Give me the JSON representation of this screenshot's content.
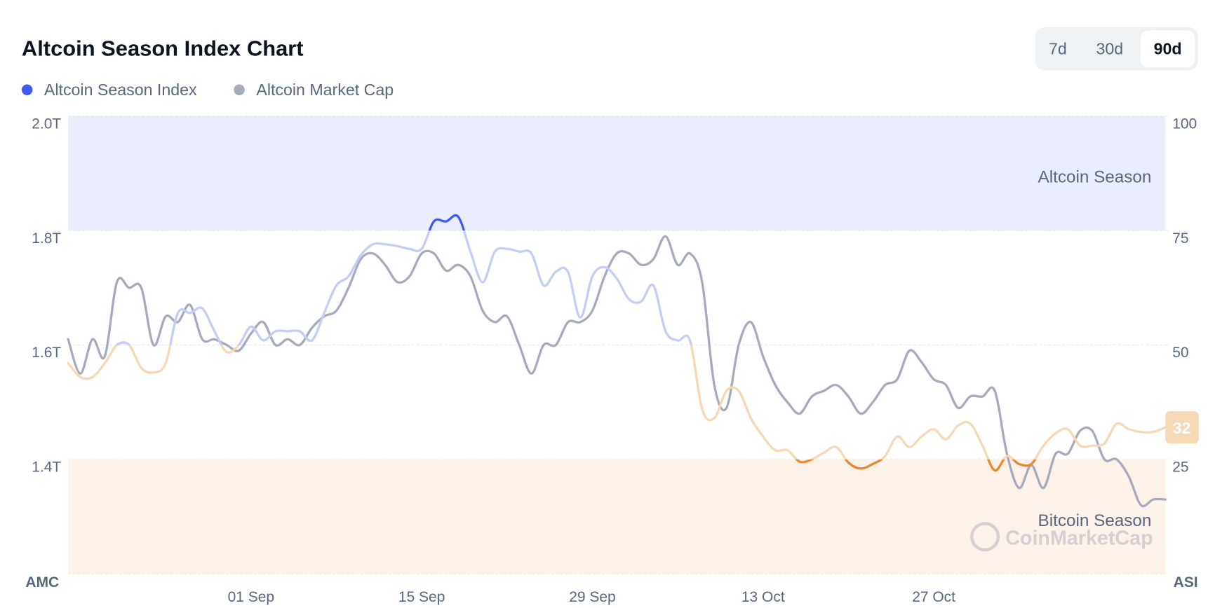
{
  "chart_data": {
    "type": "line",
    "title": "Altcoin Season Index Chart",
    "range_options": [
      "7d",
      "30d",
      "90d"
    ],
    "selected_range": 2,
    "y_label": "AMC",
    "y2_label": "ASI",
    "watermark": "CoinMarketCap",
    "x": [
      "17 Aug",
      "18 Aug",
      "19 Aug",
      "20 Aug",
      "21 Aug",
      "22 Aug",
      "23 Aug",
      "24 Aug",
      "25 Aug",
      "26 Aug",
      "27 Aug",
      "28 Aug",
      "29 Aug",
      "30 Aug",
      "31 Aug",
      "01 Sep",
      "02 Sep",
      "03 Sep",
      "04 Sep",
      "05 Sep",
      "06 Sep",
      "07 Sep",
      "08 Sep",
      "09 Sep",
      "10 Sep",
      "11 Sep",
      "12 Sep",
      "13 Sep",
      "14 Sep",
      "15 Sep",
      "16 Sep",
      "17 Sep",
      "18 Sep",
      "19 Sep",
      "20 Sep",
      "21 Sep",
      "22 Sep",
      "23 Sep",
      "24 Sep",
      "25 Sep",
      "26 Sep",
      "27 Sep",
      "28 Sep",
      "29 Sep",
      "30 Sep",
      "01 Oct",
      "02 Oct",
      "03 Oct",
      "04 Oct",
      "05 Oct",
      "06 Oct",
      "07 Oct",
      "08 Oct",
      "09 Oct",
      "10 Oct",
      "11 Oct",
      "12 Oct",
      "13 Oct",
      "14 Oct",
      "15 Oct",
      "16 Oct",
      "17 Oct",
      "18 Oct",
      "19 Oct",
      "20 Oct",
      "21 Oct",
      "22 Oct",
      "23 Oct",
      "24 Oct",
      "25 Oct",
      "26 Oct",
      "27 Oct",
      "28 Oct",
      "29 Oct",
      "30 Oct",
      "31 Oct",
      "01 Nov",
      "02 Nov",
      "03 Nov",
      "04 Nov",
      "05 Nov",
      "06 Nov",
      "07 Nov",
      "08 Nov",
      "09 Nov",
      "10 Nov",
      "11 Nov",
      "12 Nov",
      "13 Nov",
      "14 Nov",
      "15 Nov"
    ],
    "xticks": [
      "01 Sep",
      "15 Sep",
      "29 Sep",
      "13 Oct",
      "27 Oct"
    ],
    "ylim": [
      1.2,
      2.0
    ],
    "yticks": [
      {
        "value": 1.4,
        "label": "1.4T"
      },
      {
        "value": 1.6,
        "label": "1.6T"
      },
      {
        "value": 1.8,
        "label": "1.8T"
      },
      {
        "value": 2.0,
        "label": "2.0T"
      }
    ],
    "y2lim": [
      0,
      100
    ],
    "y2ticks": [
      25,
      50,
      75,
      100
    ],
    "grid": true,
    "bands": [
      {
        "label": "Altcoin Season",
        "from": 75,
        "to": 100,
        "color": "#e9edfd"
      },
      {
        "label": "Bitcoin Season",
        "from": 0,
        "to": 25,
        "color": "#fdf2ea"
      }
    ],
    "line_zones": [
      {
        "from": 75,
        "to": 100,
        "color": "#3d5af1"
      },
      {
        "from": 50,
        "to": 75,
        "color": "#c4ccf8"
      },
      {
        "from": 25,
        "to": 50,
        "color": "#f6d8b4"
      },
      {
        "from": 0,
        "to": 25,
        "color": "#e8892e"
      }
    ],
    "series": [
      {
        "name": "Altcoin Season Index",
        "color": "#3d5af1",
        "axis": "y2",
        "values": [
          46,
          43,
          43,
          46,
          50,
          50,
          45,
          44,
          46,
          57,
          57,
          58,
          53,
          48.5,
          50,
          54,
          51,
          53,
          53,
          53,
          51,
          57,
          63,
          65,
          69.6,
          72,
          72,
          71.6,
          71,
          71,
          77,
          77,
          78,
          70.4,
          63.7,
          70.4,
          71,
          70.4,
          70,
          63,
          66,
          66,
          56,
          65,
          67,
          64.5,
          60,
          59.5,
          63,
          53,
          51,
          51,
          36,
          34,
          40,
          40,
          34,
          30,
          27,
          27,
          24.5,
          25,
          26.5,
          27.7,
          24.3,
          23,
          24,
          25.7,
          30,
          27.7,
          30,
          31.6,
          29.4,
          32.4,
          32.8,
          28,
          22.6,
          25.7,
          24,
          24,
          28,
          30.7,
          31.6,
          28,
          28,
          28.5,
          32.8,
          31.6,
          31,
          31,
          32
        ]
      },
      {
        "name": "Altcoin Market Cap",
        "color": "#a6abbb",
        "values": [
          1.61,
          1.55,
          1.61,
          1.58,
          1.71,
          1.7,
          1.7,
          1.6,
          1.65,
          1.64,
          1.67,
          1.61,
          1.61,
          1.6,
          1.59,
          1.62,
          1.64,
          1.6,
          1.61,
          1.6,
          1.63,
          1.65,
          1.66,
          1.7,
          1.75,
          1.76,
          1.74,
          1.71,
          1.72,
          1.76,
          1.76,
          1.73,
          1.74,
          1.72,
          1.66,
          1.64,
          1.65,
          1.6,
          1.55,
          1.6,
          1.6,
          1.64,
          1.64,
          1.66,
          1.72,
          1.76,
          1.76,
          1.74,
          1.75,
          1.79,
          1.74,
          1.76,
          1.71,
          1.53,
          1.49,
          1.6,
          1.64,
          1.58,
          1.53,
          1.5,
          1.48,
          1.51,
          1.52,
          1.53,
          1.51,
          1.48,
          1.5,
          1.53,
          1.54,
          1.59,
          1.57,
          1.54,
          1.53,
          1.49,
          1.51,
          1.51,
          1.52,
          1.41,
          1.35,
          1.39,
          1.35,
          1.41,
          1.41,
          1.45,
          1.45,
          1.4,
          1.4,
          1.37,
          1.32,
          1.33,
          1.33
        ]
      }
    ]
  }
}
